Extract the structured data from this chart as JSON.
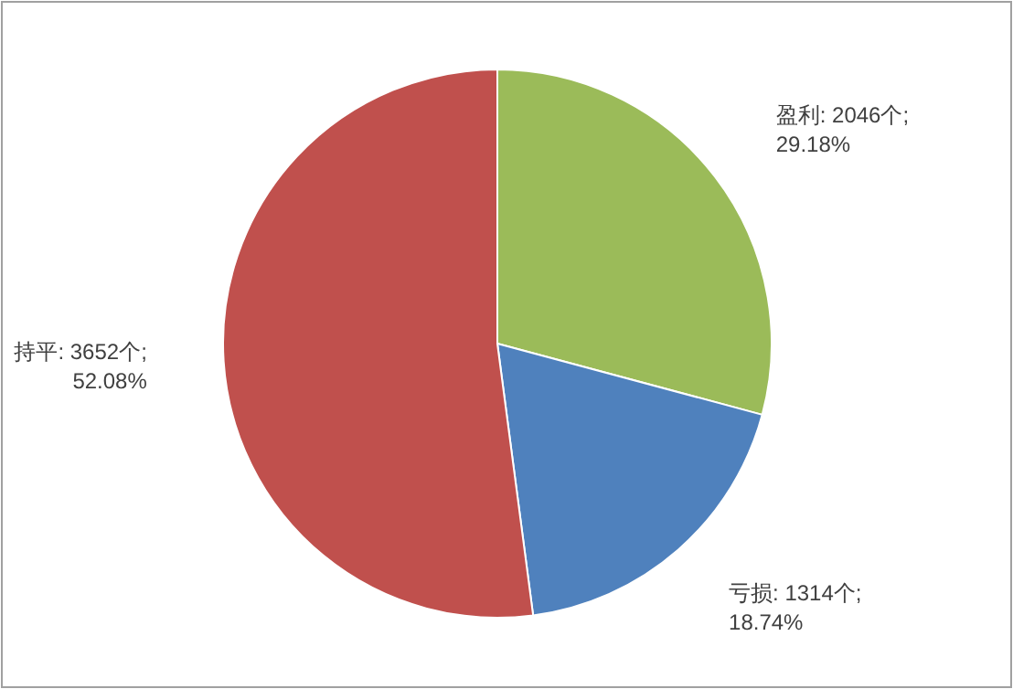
{
  "chart_data": {
    "type": "pie",
    "categories": [
      "盈利",
      "亏损",
      "持平"
    ],
    "values": [
      2046,
      1314,
      3652
    ],
    "colors": [
      "#9bbb59",
      "#4f81bd",
      "#c0504d"
    ],
    "value_labels": [
      "2046个; 29.18%",
      "1314个; 18.74%",
      "3652个; 52.08%"
    ]
  }
}
